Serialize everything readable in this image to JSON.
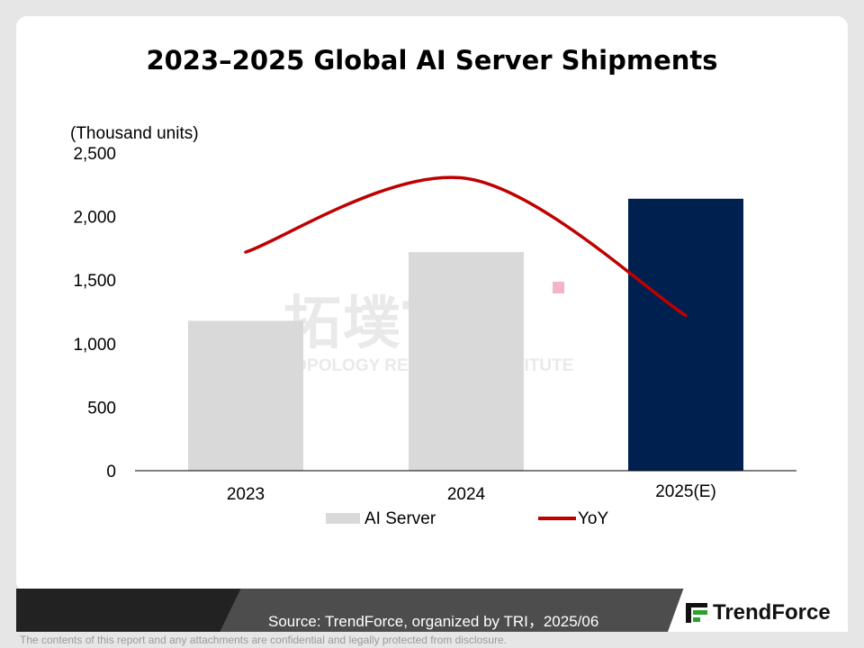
{
  "page": {
    "title": "2023–2025 Global AI Server Shipments",
    "source": "Source: TrendForce, organized by TRI，2025/06",
    "brand_name": "TrendForce",
    "disclaimer": "The contents of this report and any attachments are confidential and legally protected from disclosure.",
    "watermark": {
      "logo_text": "拓墣TRI",
      "subtitle": "TOPOLOGY RESEARCH INSTITUTE"
    }
  },
  "chart_data": {
    "type": "bar",
    "title": "2023–2025 Global AI Server Shipments",
    "ylabel": "(Thousand units)",
    "ylim": [
      0,
      2500
    ],
    "yticks": [
      0,
      500,
      1000,
      1500,
      2000,
      2500
    ],
    "ytick_labels": [
      "0",
      "500",
      "1,000",
      "1,500",
      "2,000",
      "2,500"
    ],
    "categories": [
      "2023",
      "2024",
      "2025(E)"
    ],
    "series": [
      {
        "name": "AI Server",
        "type": "bar",
        "values": [
          1180,
          1720,
          2140
        ],
        "colors": [
          "#d9d9d9",
          "#d9d9d9",
          "#002050"
        ]
      },
      {
        "name": "YoY",
        "type": "line",
        "color": "#c00000",
        "values_on_primary_axis": [
          1720,
          2300,
          1220
        ]
      }
    ],
    "legend": {
      "placement": "bottom",
      "entries": [
        "AI Server",
        "YoY"
      ]
    },
    "grid": false
  }
}
